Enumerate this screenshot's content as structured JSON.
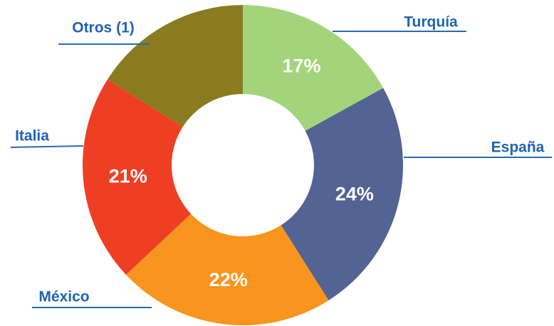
{
  "chart_data": {
    "type": "donut",
    "categories": [
      "Turquía",
      "España",
      "México",
      "Italia",
      "Otros (1)"
    ],
    "values": [
      17,
      24,
      22,
      21,
      16
    ],
    "value_labels": [
      "17%",
      "24%",
      "22%",
      "21%",
      null
    ],
    "colors": [
      "#a3d47b",
      "#536394",
      "#f7951e",
      "#ee3f24",
      "#8a7b1f"
    ]
  }
}
